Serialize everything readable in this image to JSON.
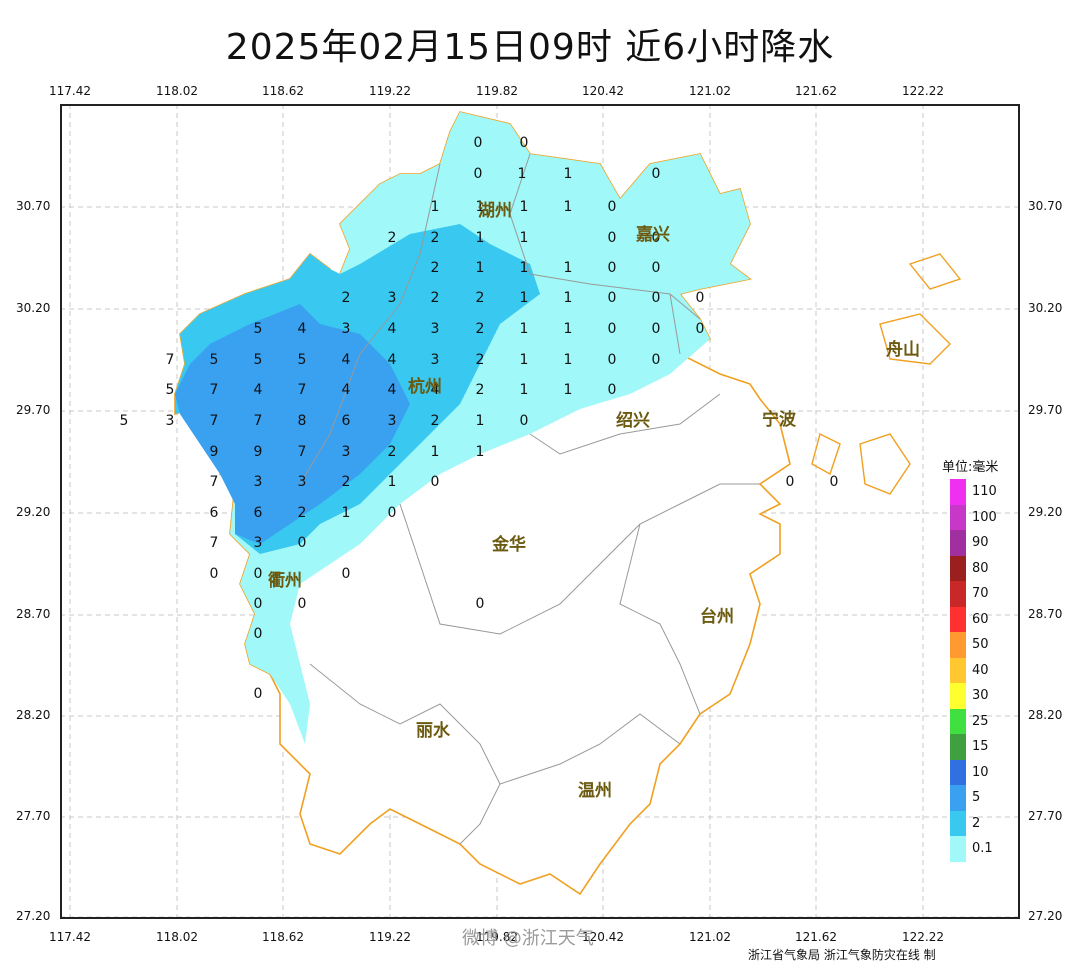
{
  "title": "2025年02月15日09时  近6小时降水",
  "lon_ticks": [
    "117.42",
    "118.02",
    "118.62",
    "119.22",
    "119.82",
    "120.42",
    "121.02",
    "121.62",
    "122.22"
  ],
  "lat_ticks": [
    "30.70",
    "30.20",
    "29.70",
    "29.20",
    "28.70",
    "28.20",
    "27.70",
    "27.20"
  ],
  "legend": {
    "title": "单位:毫米",
    "items": [
      {
        "label": "110",
        "color": "#f030f0"
      },
      {
        "label": "100",
        "color": "#c838c8"
      },
      {
        "label": "90",
        "color": "#a030a0"
      },
      {
        "label": "80",
        "color": "#9a2020"
      },
      {
        "label": "70",
        "color": "#c82828"
      },
      {
        "label": "60",
        "color": "#ff3030"
      },
      {
        "label": "50",
        "color": "#ff9a30"
      },
      {
        "label": "40",
        "color": "#ffc830"
      },
      {
        "label": "30",
        "color": "#ffff30"
      },
      {
        "label": "25",
        "color": "#40e040"
      },
      {
        "label": "15",
        "color": "#40a040"
      },
      {
        "label": "10",
        "color": "#3070e0"
      },
      {
        "label": "5",
        "color": "#3aa0f0"
      },
      {
        "label": "2",
        "color": "#38c8f0"
      },
      {
        "label": "0.1",
        "color": "#a0f8f8"
      }
    ]
  },
  "cities": [
    "湖州",
    "嘉兴",
    "杭州",
    "绍兴",
    "宁波",
    "舟山",
    "金华",
    "衢州",
    "台州",
    "丽水",
    "温州"
  ],
  "values": [
    {
      "v": "0"
    },
    {
      "v": "0"
    },
    {
      "v": "0"
    },
    {
      "v": "1"
    },
    {
      "v": "1"
    },
    {
      "v": "0"
    },
    {
      "v": "1"
    },
    {
      "v": "1"
    },
    {
      "v": "1"
    },
    {
      "v": "1"
    },
    {
      "v": "0"
    },
    {
      "v": "2"
    },
    {
      "v": "2"
    },
    {
      "v": "1"
    },
    {
      "v": "1"
    },
    {
      "v": "0"
    },
    {
      "v": "0"
    },
    {
      "v": "2"
    },
    {
      "v": "1"
    },
    {
      "v": "1"
    },
    {
      "v": "1"
    },
    {
      "v": "0"
    },
    {
      "v": "0"
    },
    {
      "v": "2"
    },
    {
      "v": "3"
    },
    {
      "v": "2"
    },
    {
      "v": "2"
    },
    {
      "v": "1"
    },
    {
      "v": "1"
    },
    {
      "v": "0"
    },
    {
      "v": "0"
    },
    {
      "v": "0"
    },
    {
      "v": "5"
    },
    {
      "v": "4"
    },
    {
      "v": "3"
    },
    {
      "v": "4"
    },
    {
      "v": "3"
    },
    {
      "v": "2"
    },
    {
      "v": "1"
    },
    {
      "v": "1"
    },
    {
      "v": "0"
    },
    {
      "v": "0"
    },
    {
      "v": "0"
    },
    {
      "v": "7"
    },
    {
      "v": "5"
    },
    {
      "v": "5"
    },
    {
      "v": "5"
    },
    {
      "v": "4"
    },
    {
      "v": "4"
    },
    {
      "v": "3"
    },
    {
      "v": "2"
    },
    {
      "v": "1"
    },
    {
      "v": "1"
    },
    {
      "v": "0"
    },
    {
      "v": "0"
    },
    {
      "v": "5"
    },
    {
      "v": "7"
    },
    {
      "v": "4"
    },
    {
      "v": "7"
    },
    {
      "v": "4"
    },
    {
      "v": "4"
    },
    {
      "v": "4"
    },
    {
      "v": "2"
    },
    {
      "v": "1"
    },
    {
      "v": "1"
    },
    {
      "v": "0"
    },
    {
      "v": "5"
    },
    {
      "v": "3"
    },
    {
      "v": "7"
    },
    {
      "v": "7"
    },
    {
      "v": "8"
    },
    {
      "v": "6"
    },
    {
      "v": "3"
    },
    {
      "v": "2"
    },
    {
      "v": "1"
    },
    {
      "v": "0"
    },
    {
      "v": "9"
    },
    {
      "v": "9"
    },
    {
      "v": "7"
    },
    {
      "v": "3"
    },
    {
      "v": "2"
    },
    {
      "v": "1"
    },
    {
      "v": "1"
    },
    {
      "v": "7"
    },
    {
      "v": "3"
    },
    {
      "v": "3"
    },
    {
      "v": "2"
    },
    {
      "v": "1"
    },
    {
      "v": "0"
    },
    {
      "v": "6"
    },
    {
      "v": "6"
    },
    {
      "v": "2"
    },
    {
      "v": "1"
    },
    {
      "v": "0"
    },
    {
      "v": "7"
    },
    {
      "v": "3"
    },
    {
      "v": "0"
    },
    {
      "v": "0"
    },
    {
      "v": "0"
    },
    {
      "v": "0"
    },
    {
      "v": "0"
    },
    {
      "v": "0"
    },
    {
      "v": "0"
    },
    {
      "v": "0"
    },
    {
      "v": "0"
    },
    {
      "v": "0"
    },
    {
      "v": "0"
    }
  ],
  "credit": "浙江省气象局   浙江气象防灾在线 制",
  "watermark": "微博 @浙江天气"
}
